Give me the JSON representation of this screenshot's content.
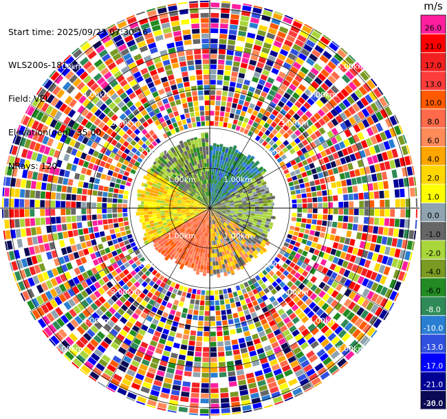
{
  "header": {
    "start_time": "Start time: 2025/09/23 07:30:16",
    "instrument": "WLS200s-181",
    "field": "Field: VEL",
    "elevation": "Elevation(deg): 35.00",
    "nrays": "NRays: 120"
  },
  "chart_data": {
    "type": "heatmap",
    "projection": "polar-ppi",
    "field": "VEL",
    "units": "m/s",
    "elevation_deg": 35.0,
    "n_rays": 120,
    "range_rings_km": [
      1,
      2,
      3,
      4,
      5
    ],
    "range_ring_labels": [
      "1.00km",
      "2.00km",
      "3.00km",
      "4.00km",
      "5.00km"
    ],
    "max_range_km": 5.2,
    "grid_spokes": 12,
    "colorbar": {
      "ticks": [
        "26.0",
        "21.0",
        "17.0",
        "13.0",
        "10.0",
        "8.0",
        "6.0",
        "4.0",
        "2.0",
        "1.0",
        "0.0",
        "-1.0",
        "-2.0",
        "-4.0",
        "-6.0",
        "-8.0",
        "-10.0",
        "-13.0",
        "-17.0",
        "-21.0",
        "-26.0",
        "-30.0"
      ],
      "colors": [
        "#ff1f9e",
        "#ff0000",
        "#f22020",
        "#ff3c3c",
        "#ff5a00",
        "#ff6a4a",
        "#ff8a5a",
        "#ffa500",
        "#ffd700",
        "#ffff00",
        "#8fa3b0",
        "#666666",
        "#a9d63a",
        "#7a9a22",
        "#228b22",
        "#2e8b57",
        "#2a7ed1",
        "#3050e0",
        "#0000ff",
        "#000096",
        "#0b0b55"
      ]
    },
    "sectors": [
      {
        "from_deg": -58,
        "to_deg": -3,
        "max_range_km": 1.82,
        "color_indices": [
          11,
          12,
          13,
          14,
          11,
          12
        ],
        "description_values_ms": "-1 to -6"
      },
      {
        "from_deg": 0,
        "to_deg": 55,
        "max_range_km": 1.62,
        "color_indices": [
          16,
          15,
          17,
          16,
          15,
          14
        ],
        "description_values_ms": "-6 to -13"
      },
      {
        "from_deg": 55,
        "to_deg": 120,
        "max_range_km": 1.6,
        "color_indices": [
          11,
          12,
          13,
          10,
          11,
          12
        ],
        "description_values_ms": "-4 to 1"
      },
      {
        "from_deg": 120,
        "to_deg": 180,
        "max_range_km": 1.72,
        "color_indices": [
          8,
          7,
          6,
          10,
          11
        ],
        "description_values_ms": "1 to 6"
      },
      {
        "from_deg": 180,
        "to_deg": 240,
        "max_range_km": 1.62,
        "color_indices": [
          6,
          5,
          4,
          6,
          5
        ],
        "description_values_ms": "6 to 13"
      },
      {
        "from_deg": 240,
        "to_deg": 302,
        "max_range_km": 1.78,
        "color_indices": [
          8,
          9,
          7,
          8,
          12
        ],
        "description_values_ms": "2 to 6"
      }
    ],
    "outer_noise": true
  }
}
